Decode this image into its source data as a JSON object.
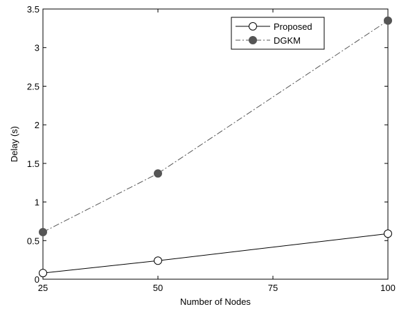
{
  "chart_data": {
    "type": "line",
    "title": "",
    "xlabel": "Number of Nodes",
    "ylabel": "Delay (s)",
    "xlim": [
      25,
      100
    ],
    "ylim": [
      0,
      3.5
    ],
    "xticks": [
      25,
      50,
      75,
      100
    ],
    "yticks": [
      0,
      0.5,
      1,
      1.5,
      2,
      2.5,
      3,
      3.5
    ],
    "xtick_labels": [
      "25",
      "50",
      "75",
      "100"
    ],
    "ytick_labels": [
      "0",
      "0.5",
      "1",
      "1.5",
      "2",
      "2.5",
      "3",
      "3.5"
    ],
    "grid": false,
    "legend_position": "top-right",
    "series": [
      {
        "name": "Proposed",
        "x": [
          25,
          50,
          100
        ],
        "values": [
          0.08,
          0.24,
          0.59
        ],
        "line_style": "solid",
        "marker": "open-circle",
        "color": "#000000"
      },
      {
        "name": "DGKM",
        "x": [
          25,
          50,
          100
        ],
        "values": [
          0.61,
          1.37,
          3.35
        ],
        "line_style": "dash-dot",
        "marker": "filled-circle",
        "color": "#555555"
      }
    ]
  }
}
